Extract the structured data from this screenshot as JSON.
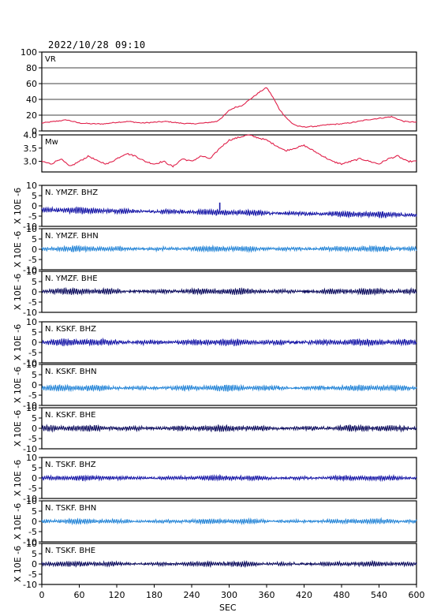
{
  "header": {
    "datetime": "2022/10/28 09:10"
  },
  "x_axis": {
    "label": "SEC",
    "min": 0,
    "max": 600,
    "ticks": [
      0,
      60,
      120,
      180,
      240,
      300,
      360,
      420,
      480,
      540,
      600
    ]
  },
  "colors": {
    "vr": "#e0204a",
    "mw": "#e0204a",
    "bhz": "#1a1aa8",
    "bhn": "#2a88d8",
    "bhe": "#101060"
  },
  "waveform_ylabel": "X 10E -6",
  "chart_data": [
    {
      "type": "line",
      "id": "vr",
      "label": "VR",
      "color": "#e0204a",
      "ylim": [
        0,
        100
      ],
      "yticks": [
        0,
        20,
        40,
        60,
        80,
        100
      ],
      "grid": true,
      "x": [
        0,
        20,
        40,
        60,
        80,
        100,
        120,
        140,
        160,
        180,
        200,
        220,
        240,
        260,
        280,
        290,
        300,
        310,
        320,
        330,
        340,
        350,
        360,
        370,
        380,
        390,
        400,
        410,
        420,
        440,
        460,
        480,
        500,
        520,
        540,
        560,
        580,
        600
      ],
      "y": [
        10,
        12,
        14,
        10,
        9,
        9,
        11,
        12,
        10,
        11,
        12,
        10,
        9,
        10,
        12,
        18,
        26,
        30,
        32,
        38,
        44,
        50,
        55,
        43,
        28,
        18,
        10,
        6,
        5,
        6,
        8,
        9,
        11,
        14,
        16,
        18,
        12,
        11
      ]
    },
    {
      "type": "line",
      "id": "mw",
      "label": "Mw",
      "color": "#e0204a",
      "ylim": [
        2.6,
        4.0
      ],
      "yticks": [
        3.0,
        3.5,
        4.0
      ],
      "grid": false,
      "x": [
        0,
        15,
        30,
        45,
        60,
        75,
        90,
        105,
        120,
        135,
        150,
        165,
        180,
        195,
        210,
        225,
        240,
        255,
        270,
        285,
        300,
        315,
        330,
        345,
        360,
        375,
        390,
        405,
        420,
        435,
        450,
        465,
        480,
        495,
        510,
        525,
        540,
        555,
        570,
        585,
        600
      ],
      "y": [
        3.0,
        2.9,
        3.1,
        2.8,
        3.0,
        3.2,
        3.0,
        2.9,
        3.1,
        3.3,
        3.2,
        3.0,
        2.9,
        3.0,
        2.8,
        3.1,
        3.0,
        3.2,
        3.1,
        3.5,
        3.8,
        3.9,
        4.0,
        3.9,
        3.8,
        3.6,
        3.4,
        3.5,
        3.6,
        3.4,
        3.2,
        3.0,
        2.9,
        3.0,
        3.1,
        3.0,
        2.9,
        3.1,
        3.2,
        3.0,
        3.0
      ]
    },
    {
      "type": "line",
      "id": "ymzf-bhz",
      "label": "N. YMZF. BHZ",
      "color": "#1a1aa8",
      "ylim": [
        -10,
        10
      ],
      "yticks": [
        -10,
        -5,
        0,
        5,
        10
      ],
      "baseline": -2,
      "trend": -2.5,
      "amplitude": 1.1,
      "spike_x": 285,
      "spike_y": 1.6
    },
    {
      "type": "line",
      "id": "ymzf-bhn",
      "label": "N. YMZF. BHN",
      "color": "#2a88d8",
      "ylim": [
        -10,
        10
      ],
      "yticks": [
        -10,
        -5,
        0,
        5,
        10
      ],
      "baseline": 0.2,
      "trend": 0,
      "amplitude": 1.0
    },
    {
      "type": "line",
      "id": "ymzf-bhe",
      "label": "N. YMZF. BHE",
      "color": "#101060",
      "ylim": [
        -10,
        10
      ],
      "yticks": [
        -10,
        -5,
        0,
        5,
        10
      ],
      "baseline": 0.2,
      "trend": 0,
      "amplitude": 1.1
    },
    {
      "type": "line",
      "id": "kskf-bhz",
      "label": "N. KSKF. BHZ",
      "color": "#1a1aa8",
      "ylim": [
        -10,
        10
      ],
      "yticks": [
        -10,
        -5,
        0,
        5,
        10
      ],
      "baseline": 0,
      "trend": 0,
      "amplitude": 1.2
    },
    {
      "type": "line",
      "id": "kskf-bhn",
      "label": "N. KSKF. BHN",
      "color": "#2a88d8",
      "ylim": [
        -10,
        10
      ],
      "yticks": [
        -10,
        -5,
        0,
        5,
        10
      ],
      "baseline": -1.5,
      "trend": 0,
      "amplitude": 1.1
    },
    {
      "type": "line",
      "id": "kskf-bhe",
      "label": "N. KSKF. BHE",
      "color": "#101060",
      "ylim": [
        -10,
        10
      ],
      "yticks": [
        -10,
        -5,
        0,
        5,
        10
      ],
      "baseline": 0,
      "trend": 0,
      "amplitude": 1.1
    },
    {
      "type": "line",
      "id": "tskf-bhz",
      "label": "N. TSKF. BHZ",
      "color": "#1a1aa8",
      "ylim": [
        -10,
        10
      ],
      "yticks": [
        -10,
        -5,
        0,
        5,
        10
      ],
      "baseline": 0,
      "trend": 0,
      "amplitude": 0.9
    },
    {
      "type": "line",
      "id": "tskf-bhn",
      "label": "N. TSKF. BHN",
      "color": "#2a88d8",
      "ylim": [
        -10,
        10
      ],
      "yticks": [
        -10,
        -5,
        0,
        5,
        10
      ],
      "baseline": 0,
      "trend": 0,
      "amplitude": 0.9
    },
    {
      "type": "line",
      "id": "tskf-bhe",
      "label": "N. TSKF. BHE",
      "color": "#101060",
      "ylim": [
        -10,
        10
      ],
      "yticks": [
        -10,
        -5,
        0,
        5,
        10
      ],
      "baseline": 0,
      "trend": 0,
      "amplitude": 0.9
    }
  ]
}
